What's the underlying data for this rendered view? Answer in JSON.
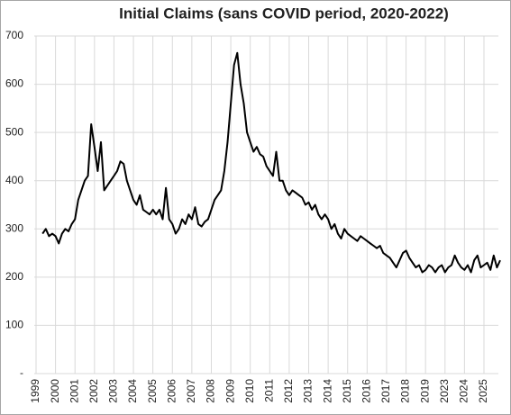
{
  "chart_data": {
    "type": "line",
    "title": "Initial Claims (sans COVID period, 2020-2022)",
    "categories": [
      "1999",
      null,
      null,
      null,
      null,
      null,
      "2000",
      null,
      null,
      null,
      null,
      null,
      "2001",
      null,
      null,
      null,
      null,
      null,
      "2002",
      null,
      null,
      null,
      null,
      null,
      "2003",
      null,
      null,
      null,
      null,
      null,
      "2004",
      null,
      null,
      null,
      null,
      null,
      "2005",
      null,
      null,
      null,
      null,
      null,
      "2006",
      null,
      null,
      null,
      null,
      null,
      "2007",
      null,
      null,
      null,
      null,
      null,
      "2008",
      null,
      null,
      null,
      null,
      null,
      "2009",
      null,
      null,
      null,
      null,
      null,
      "2010",
      null,
      null,
      null,
      null,
      null,
      "2011",
      null,
      null,
      null,
      null,
      null,
      "2012",
      null,
      null,
      null,
      null,
      null,
      "2013",
      null,
      null,
      null,
      null,
      null,
      "2014",
      null,
      null,
      null,
      null,
      null,
      "2015",
      null,
      null,
      null,
      null,
      null,
      "2016",
      null,
      null,
      null,
      null,
      null,
      "2017",
      null,
      null,
      null,
      null,
      null,
      "2018",
      null,
      null,
      null,
      null,
      null,
      "2019",
      null,
      null,
      null,
      null,
      null,
      "2023",
      null,
      null,
      null,
      null,
      null,
      "2024",
      null,
      null,
      null,
      null,
      null,
      "2025",
      null,
      null,
      null,
      null,
      null
    ],
    "series": [
      {
        "color": "#000000",
        "values": [
          null,
          null,
          290,
          300,
          285,
          290,
          285,
          270,
          290,
          300,
          295,
          310,
          320,
          360,
          380,
          400,
          410,
          517,
          470,
          420,
          480,
          380,
          390,
          400,
          410,
          420,
          440,
          435,
          400,
          380,
          360,
          350,
          370,
          340,
          335,
          330,
          340,
          330,
          340,
          320,
          385,
          320,
          310,
          290,
          300,
          320,
          310,
          330,
          320,
          345,
          310,
          305,
          315,
          320,
          340,
          360,
          370,
          380,
          420,
          480,
          560,
          640,
          665,
          600,
          560,
          500,
          480,
          460,
          470,
          455,
          450,
          430,
          420,
          410,
          460,
          400,
          400,
          380,
          370,
          380,
          375,
          370,
          365,
          350,
          355,
          340,
          350,
          330,
          320,
          330,
          320,
          300,
          310,
          290,
          280,
          300,
          290,
          285,
          280,
          275,
          285,
          280,
          275,
          270,
          265,
          260,
          265,
          250,
          245,
          240,
          230,
          220,
          235,
          250,
          255,
          240,
          230,
          220,
          225,
          210,
          215,
          225,
          220,
          210,
          220,
          225,
          210,
          220,
          225,
          245,
          230,
          220,
          215,
          225,
          210,
          235,
          245,
          220,
          225,
          230,
          215,
          245,
          220,
          235
        ]
      }
    ],
    "ylim": [
      0,
      700
    ],
    "yticks": [
      {
        "value": 0,
        "label": "-"
      },
      100,
      200,
      300,
      400,
      500,
      600,
      700
    ],
    "grid": true
  }
}
